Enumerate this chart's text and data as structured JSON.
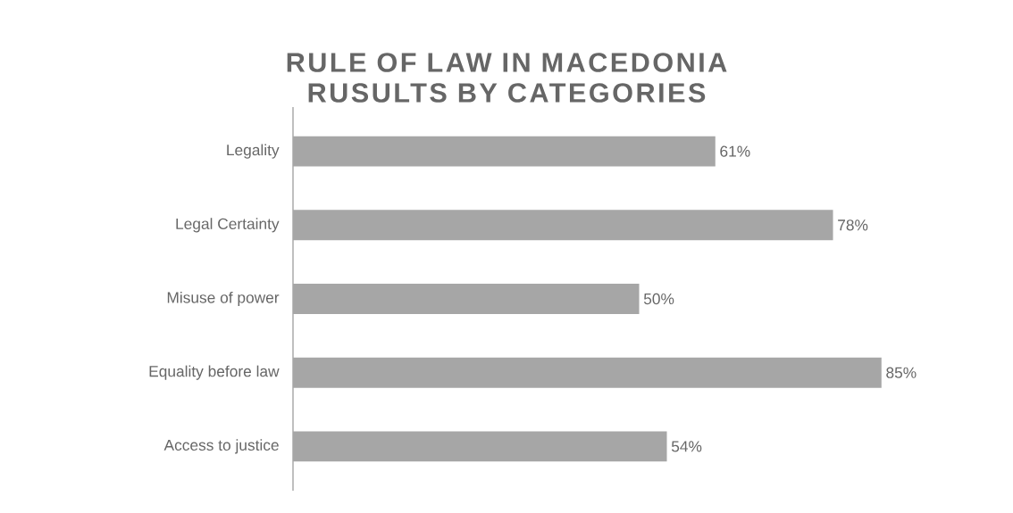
{
  "chart_data": {
    "type": "bar",
    "orientation": "horizontal",
    "title": "RULE OF LAW IN MACEDONIA",
    "subtitle": "RUSULTS BY CATEGORIES",
    "categories": [
      "Legality",
      "Legal Certainty",
      "Misuse of power",
      "Equality before law",
      "Access to justice"
    ],
    "values": [
      61,
      78,
      50,
      85,
      54
    ],
    "value_labels": [
      "61%",
      "78%",
      "50%",
      "85%",
      "54%"
    ],
    "color": "#a6a6a6",
    "tick_labels": "y"
  }
}
